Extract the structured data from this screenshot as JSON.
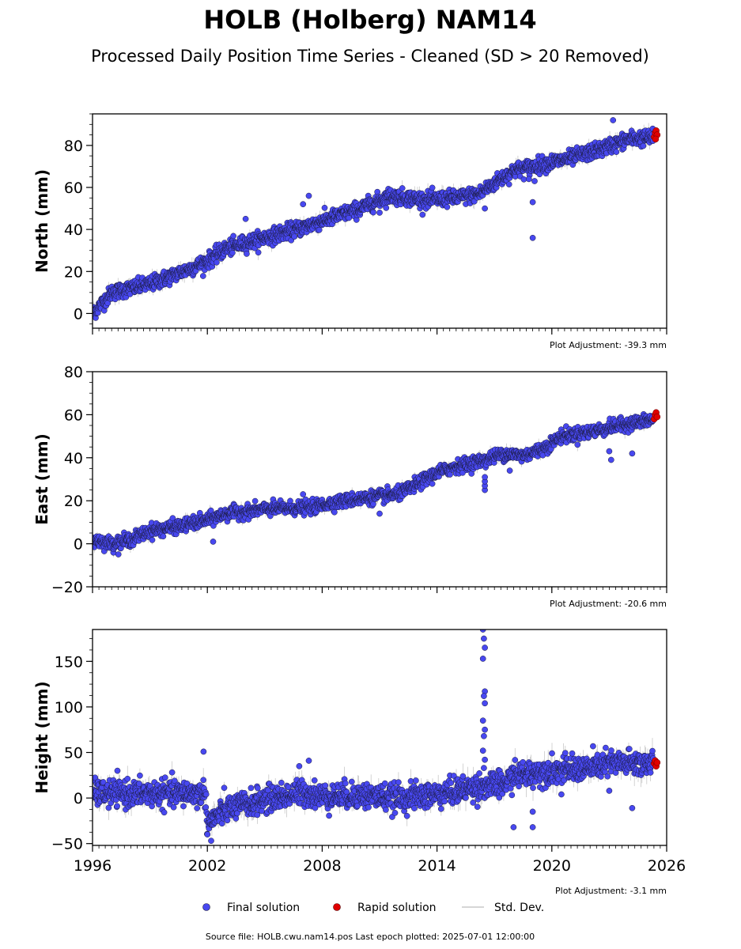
{
  "title": "HOLB (Holberg) NAM14",
  "subtitle": "Processed Daily Position Time Series - Cleaned (SD > 20 Removed)",
  "footer": "Source file: HOLB.cwu.nam14.pos  Last epoch plotted: 2025-07-01 12:00:00",
  "colors": {
    "final": "#4848f0",
    "final_edge": "#1a1a3a",
    "rapid": "#e00000",
    "stddev": "#b0b0b0"
  },
  "chart_data": [
    {
      "type": "scatter",
      "id": "north",
      "ylabel": "North (mm)",
      "ylim": [
        -7,
        95
      ],
      "yticks": [
        0,
        20,
        40,
        60,
        80
      ],
      "xlim": [
        1996,
        2026
      ],
      "xticks": [
        1996,
        2002,
        2008,
        2014,
        2020,
        2026
      ],
      "show_xtick_labels": false,
      "adjustment": "Plot Adjustment: -39.3 mm",
      "trend": [
        [
          1996.0,
          0
        ],
        [
          1997.0,
          10
        ],
        [
          1999.0,
          14
        ],
        [
          2001.0,
          21
        ],
        [
          2002.0,
          25
        ],
        [
          2003.0,
          31
        ],
        [
          2005.0,
          36
        ],
        [
          2007.0,
          41
        ],
        [
          2008.0,
          44
        ],
        [
          2010.0,
          50
        ],
        [
          2011.5,
          56
        ],
        [
          2012.5,
          55
        ],
        [
          2013.5,
          54
        ],
        [
          2015.0,
          55
        ],
        [
          2016.2,
          57
        ],
        [
          2017.0,
          62
        ],
        [
          2018.0,
          68
        ],
        [
          2019.5,
          71
        ],
        [
          2021.0,
          74
        ],
        [
          2022.5,
          78
        ],
        [
          2024.0,
          83
        ],
        [
          2025.5,
          84
        ]
      ],
      "noise": 1.8,
      "outliers": [
        [
          2023.2,
          92
        ],
        [
          2019.0,
          53
        ],
        [
          2019.0,
          36
        ],
        [
          2004.0,
          45
        ],
        [
          2007.0,
          52
        ],
        [
          2007.3,
          56
        ],
        [
          2011.0,
          48
        ],
        [
          2016.5,
          50
        ],
        [
          2018.8,
          64
        ],
        [
          2019.1,
          63
        ]
      ],
      "rapid": [
        [
          2025.35,
          84
        ],
        [
          2025.4,
          86
        ],
        [
          2025.45,
          87
        ],
        [
          2025.5,
          85
        ],
        [
          2025.42,
          83
        ]
      ]
    },
    {
      "type": "scatter",
      "id": "east",
      "ylabel": "East (mm)",
      "ylim": [
        -20,
        80
      ],
      "yticks": [
        -20,
        0,
        20,
        40,
        60,
        80
      ],
      "xlim": [
        1996,
        2026
      ],
      "xticks": [
        1996,
        2002,
        2008,
        2014,
        2020,
        2026
      ],
      "show_xtick_labels": false,
      "adjustment": "Plot Adjustment: -20.6 mm",
      "trend": [
        [
          1996.0,
          2
        ],
        [
          1997.0,
          0
        ],
        [
          1998.0,
          2
        ],
        [
          1999.0,
          6
        ],
        [
          2001.0,
          9
        ],
        [
          2002.0,
          11
        ],
        [
          2003.0,
          14
        ],
        [
          2005.0,
          16
        ],
        [
          2007.5,
          17
        ],
        [
          2008.5,
          19
        ],
        [
          2010.0,
          21
        ],
        [
          2012.0,
          23
        ],
        [
          2013.0,
          28
        ],
        [
          2014.0,
          33
        ],
        [
          2015.0,
          36
        ],
        [
          2016.5,
          39
        ],
        [
          2017.5,
          42
        ],
        [
          2018.5,
          41
        ],
        [
          2019.5,
          44
        ],
        [
          2020.5,
          50
        ],
        [
          2022.0,
          52
        ],
        [
          2023.5,
          55
        ],
        [
          2025.5,
          58
        ]
      ],
      "noise": 1.5,
      "outliers": [
        [
          2007.0,
          23
        ],
        [
          2011.0,
          14
        ],
        [
          2002.3,
          1
        ],
        [
          2016.5,
          25
        ],
        [
          2016.5,
          27
        ],
        [
          2016.5,
          29
        ],
        [
          2016.5,
          31
        ],
        [
          2023.0,
          43
        ],
        [
          2023.1,
          39
        ],
        [
          2024.2,
          42
        ],
        [
          2017.8,
          34
        ]
      ],
      "rapid": [
        [
          2025.35,
          58
        ],
        [
          2025.4,
          60
        ],
        [
          2025.45,
          61
        ],
        [
          2025.5,
          59
        ]
      ]
    },
    {
      "type": "scatter",
      "id": "height",
      "ylabel": "Height (mm)",
      "ylim": [
        -52,
        185
      ],
      "yticks": [
        -50,
        0,
        50,
        100,
        150
      ],
      "xlim": [
        1996,
        2026
      ],
      "xticks": [
        1996,
        2002,
        2008,
        2014,
        2020,
        2026
      ],
      "show_xtick_labels": true,
      "adjustment": "Plot Adjustment: -3.1 mm",
      "trend": [
        [
          1996.0,
          5
        ],
        [
          2001.9,
          5
        ],
        [
          2002.0,
          -28
        ],
        [
          2003.0,
          -12
        ],
        [
          2005.0,
          -2
        ],
        [
          2007.0,
          6
        ],
        [
          2008.0,
          2
        ],
        [
          2010.0,
          3
        ],
        [
          2012.0,
          0
        ],
        [
          2014.0,
          4
        ],
        [
          2016.0,
          12
        ],
        [
          2017.5,
          15
        ],
        [
          2018.0,
          25
        ],
        [
          2020.0,
          30
        ],
        [
          2022.0,
          33
        ],
        [
          2023.0,
          38
        ],
        [
          2025.5,
          38
        ]
      ],
      "noise": 7,
      "outliers": [
        [
          2001.8,
          51
        ],
        [
          2007.3,
          41
        ],
        [
          2006.8,
          35
        ],
        [
          2002.2,
          -47
        ],
        [
          2016.4,
          185
        ],
        [
          2016.45,
          175
        ],
        [
          2016.5,
          165
        ],
        [
          2016.4,
          153
        ],
        [
          2016.5,
          117
        ],
        [
          2016.45,
          112
        ],
        [
          2016.5,
          104
        ],
        [
          2016.4,
          85
        ],
        [
          2016.5,
          75
        ],
        [
          2016.45,
          68
        ],
        [
          2016.4,
          52
        ],
        [
          2016.5,
          42
        ],
        [
          2016.45,
          33
        ],
        [
          2018.0,
          -32
        ],
        [
          2019.0,
          -32
        ],
        [
          2019.0,
          -15
        ],
        [
          2024.2,
          -11
        ],
        [
          2023.0,
          8
        ],
        [
          2020.5,
          4
        ]
      ],
      "rapid": [
        [
          2025.35,
          38
        ],
        [
          2025.4,
          41
        ],
        [
          2025.45,
          35
        ],
        [
          2025.5,
          39
        ]
      ]
    }
  ],
  "legend": {
    "final": "Final solution",
    "rapid": "Rapid solution",
    "stddev": "Std. Dev."
  }
}
